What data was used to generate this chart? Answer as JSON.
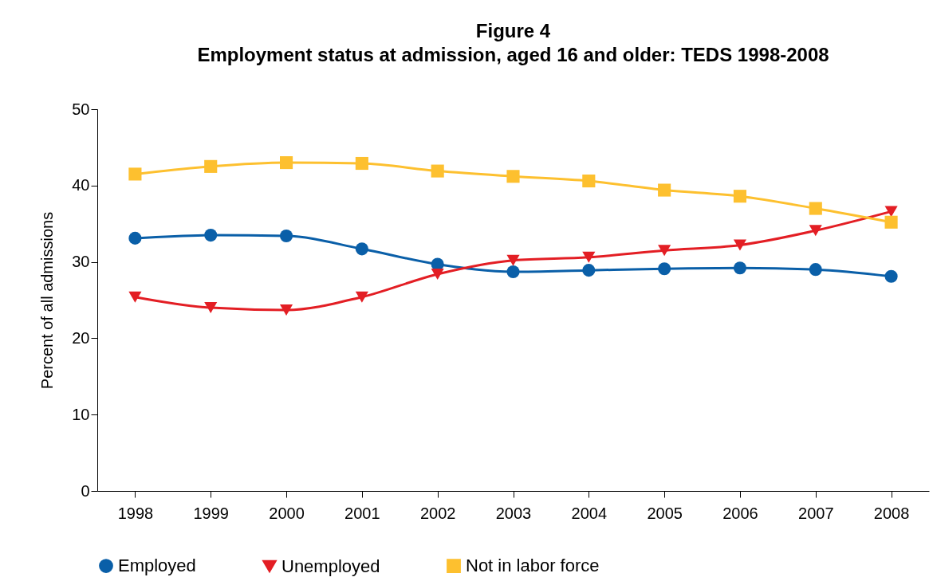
{
  "chart_data": {
    "type": "line",
    "title": "Figure 4",
    "subtitle": "Employment status at admission, aged 16 and older: TEDS 1998-2008",
    "ylabel": "Percent of all admissions",
    "categories": [
      "1998",
      "1999",
      "2000",
      "2001",
      "2002",
      "2003",
      "2004",
      "2005",
      "2006",
      "2007",
      "2008"
    ],
    "series": [
      {
        "name": "Employed",
        "color": "#0a5fa8",
        "marker": "circle",
        "values": [
          33.1,
          33.5,
          33.4,
          31.7,
          29.7,
          28.7,
          28.9,
          29.1,
          29.2,
          29.0,
          28.1
        ]
      },
      {
        "name": "Unemployed",
        "color": "#e31e24",
        "marker": "triangle",
        "values": [
          25.4,
          24.0,
          23.7,
          25.4,
          28.4,
          30.2,
          30.6,
          31.5,
          32.2,
          34.1,
          36.6
        ]
      },
      {
        "name": "Not in labor force",
        "color": "#fdc02f",
        "marker": "square",
        "values": [
          41.5,
          42.5,
          43.0,
          42.9,
          41.9,
          41.2,
          40.6,
          39.4,
          38.6,
          37.0,
          35.2
        ]
      }
    ],
    "ylim": [
      0,
      50
    ],
    "yticks": [
      0,
      10,
      20,
      30,
      40,
      50
    ],
    "grid": false,
    "legend": "bottom"
  }
}
